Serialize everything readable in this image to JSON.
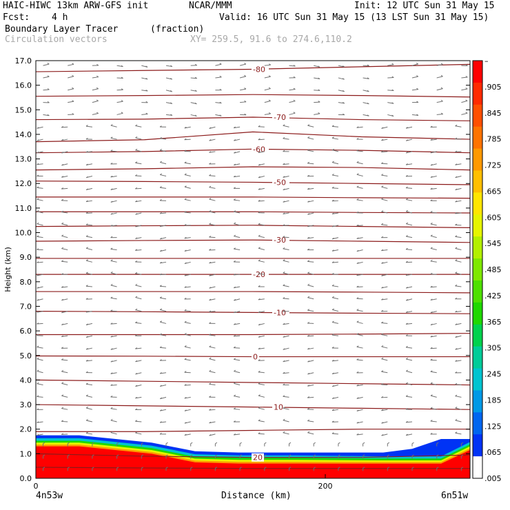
{
  "header": {
    "model": "HAIC-HIWC 13km ARW-GFS init",
    "org": "NCAR/MMM",
    "init": "Init: 12 UTC Sun 31 May 15",
    "fcst_label": "Fcst:",
    "fcst_value": "4 h",
    "valid": "Valid: 16 UTC Sun 31 May 15 (13 LST Sun 31 May 15)",
    "field": "Boundary Layer Tracer",
    "units": "(fraction)",
    "vectors": "Circulation vectors",
    "xy": "XY= 259.5, 91.6 to 274.6,110.2"
  },
  "footer": {
    "left_point": "4n53w",
    "right_point": "6n51w"
  },
  "chart_data": {
    "type": "heatmap",
    "xlabel": "Distance (km)",
    "ylabel": "Height (km)",
    "xlim": [
      0,
      300
    ],
    "ylim": [
      0,
      17
    ],
    "x_ticks": [
      {
        "v": 0,
        "label": "0"
      },
      {
        "v": 200,
        "label": "200"
      }
    ],
    "y_ticks": [
      {
        "v": 0,
        "label": "0.0"
      },
      {
        "v": 1,
        "label": "1.0"
      },
      {
        "v": 2,
        "label": "2.0"
      },
      {
        "v": 3,
        "label": "3.0"
      },
      {
        "v": 4,
        "label": "4.0"
      },
      {
        "v": 5,
        "label": "5.0"
      },
      {
        "v": 6,
        "label": "6.0"
      },
      {
        "v": 7,
        "label": "7.0"
      },
      {
        "v": 8,
        "label": "8.0"
      },
      {
        "v": 9,
        "label": "9.0"
      },
      {
        "v": 10,
        "label": "10.0"
      },
      {
        "v": 11,
        "label": "11.0"
      },
      {
        "v": 12,
        "label": "12.0"
      },
      {
        "v": 13,
        "label": "13.0"
      },
      {
        "v": 14,
        "label": "14.0"
      },
      {
        "v": 15,
        "label": "15.0"
      },
      {
        "v": 16,
        "label": "16.0"
      },
      {
        "v": 17,
        "label": "17.0"
      }
    ],
    "colorbar": {
      "labels": [
        "–",
        ".905",
        ".845",
        ".785",
        ".725",
        ".665",
        ".605",
        ".545",
        ".485",
        ".425",
        ".365",
        ".305",
        ".245",
        ".185",
        ".125",
        ".065",
        ".005"
      ],
      "colors": [
        "#ff0000",
        "#ff2a00",
        "#ff4f00",
        "#ff7300",
        "#ff9900",
        "#ffbf00",
        "#ffe600",
        "#e6f500",
        "#b3f000",
        "#7fe800",
        "#4ee000",
        "#1fd800",
        "#00d24e",
        "#00cc99",
        "#00c4d0",
        "#0099e6",
        "#0066f0",
        "#0033f5",
        "#ffffff"
      ]
    },
    "temperature_contours": [
      {
        "value": -80,
        "label": "-80",
        "y": [
          16.55,
          16.6,
          16.65,
          16.75,
          16.85
        ]
      },
      {
        "value": -75,
        "label": "",
        "y": [
          15.55,
          15.58,
          15.62,
          15.58,
          15.52
        ]
      },
      {
        "value": -70,
        "label": "-70",
        "y": [
          14.6,
          14.62,
          14.7,
          14.6,
          14.55
        ]
      },
      {
        "value": -65,
        "label": "",
        "y": [
          13.7,
          13.78,
          14.1,
          13.9,
          13.8
        ]
      },
      {
        "value": -60,
        "label": "-60",
        "y": [
          13.25,
          13.3,
          13.4,
          13.35,
          13.25
        ]
      },
      {
        "value": -55,
        "label": "",
        "y": [
          12.55,
          12.6,
          12.68,
          12.65,
          12.55
        ]
      },
      {
        "value": -50,
        "label": "-50",
        "y": [
          12.1,
          12.08,
          12.05,
          12.0,
          11.95
        ]
      },
      {
        "value": -45,
        "label": "",
        "y": [
          11.45,
          11.45,
          11.45,
          11.42,
          11.4
        ]
      },
      {
        "value": -40,
        "label": "",
        "y": [
          10.85,
          10.85,
          10.85,
          10.82,
          10.8
        ]
      },
      {
        "value": -35,
        "label": "",
        "y": [
          10.25,
          10.28,
          10.3,
          10.25,
          10.2
        ]
      },
      {
        "value": -30,
        "label": "-30",
        "y": [
          9.65,
          9.68,
          9.7,
          9.65,
          9.6
        ]
      },
      {
        "value": -25,
        "label": "",
        "y": [
          8.95,
          8.95,
          8.95,
          8.95,
          8.95
        ]
      },
      {
        "value": -20,
        "label": "-20",
        "y": [
          8.3,
          8.3,
          8.3,
          8.3,
          8.3
        ]
      },
      {
        "value": -15,
        "label": "",
        "y": [
          7.6,
          7.6,
          7.6,
          7.58,
          7.55
        ]
      },
      {
        "value": -10,
        "label": "-10",
        "y": [
          6.8,
          6.78,
          6.75,
          6.72,
          6.7
        ]
      },
      {
        "value": -5,
        "label": "",
        "y": [
          5.85,
          5.85,
          5.85,
          5.87,
          5.9
        ]
      },
      {
        "value": 0,
        "label": "0",
        "y": [
          4.98,
          4.97,
          4.95,
          4.95,
          4.95
        ]
      },
      {
        "value": 5,
        "label": "",
        "y": [
          4.0,
          3.95,
          3.9,
          3.85,
          3.8
        ]
      },
      {
        "value": 10,
        "label": "10",
        "y": [
          3.0,
          2.95,
          2.9,
          2.85,
          2.8
        ]
      },
      {
        "value": 15,
        "label": "",
        "y": [
          1.9,
          1.9,
          1.95,
          2.0,
          2.0
        ]
      },
      {
        "value": 20,
        "label": "20",
        "y": [
          1.0,
          0.9,
          0.85,
          0.85,
          0.95
        ]
      },
      {
        "value": 25,
        "label": "",
        "y": [
          0.45,
          0.42,
          0.4,
          0.4,
          0.4
        ]
      }
    ],
    "contour_x": [
      0,
      75,
      150,
      225,
      300
    ],
    "tracer_layer": {
      "top_km": [
        1.75,
        1.75,
        1.45,
        1.1,
        1.05,
        1.05,
        1.05,
        1.2,
        1.6,
        1.6
      ],
      "x_km": [
        0,
        30,
        80,
        110,
        140,
        180,
        240,
        260,
        280,
        300
      ]
    }
  }
}
